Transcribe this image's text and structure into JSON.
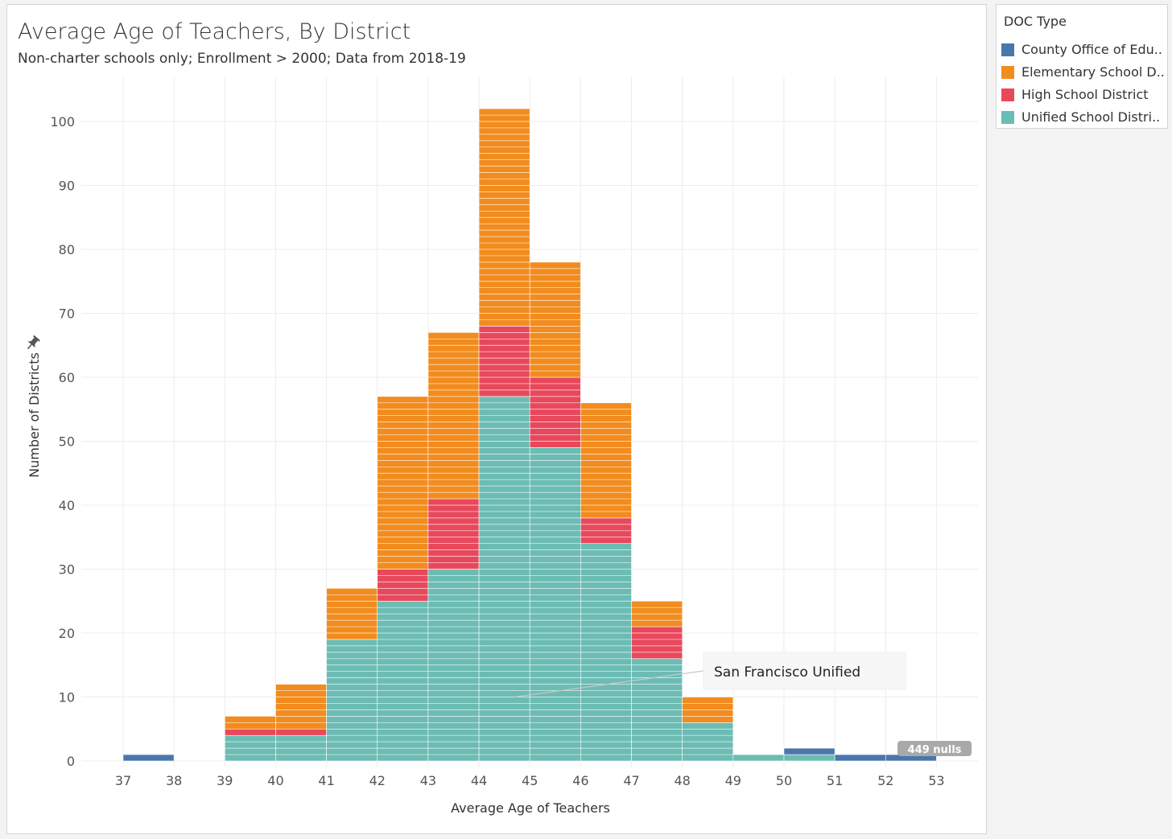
{
  "chart_data": {
    "type": "bar",
    "stacked": true,
    "histogram": true,
    "title": "Average Age of Teachers, By District",
    "subtitle": "Non-charter schools only; Enrollment > 2000; Data from 2018-19",
    "xlabel": "Average Age of Teachers",
    "ylabel": "Number of Districts",
    "xlim": [
      37,
      53
    ],
    "ylim": [
      0,
      105
    ],
    "x_ticks": [
      "37",
      "38",
      "39",
      "40",
      "41",
      "42",
      "43",
      "44",
      "45",
      "46",
      "47",
      "48",
      "49",
      "50",
      "51",
      "52",
      "53"
    ],
    "y_ticks": [
      "0",
      "10",
      "20",
      "30",
      "40",
      "50",
      "60",
      "70",
      "80",
      "90",
      "100"
    ],
    "bins": [
      {
        "start": 37,
        "end": 38
      },
      {
        "start": 38,
        "end": 39
      },
      {
        "start": 39,
        "end": 40
      },
      {
        "start": 40,
        "end": 41
      },
      {
        "start": 41,
        "end": 42
      },
      {
        "start": 42,
        "end": 43
      },
      {
        "start": 43,
        "end": 44
      },
      {
        "start": 44,
        "end": 45
      },
      {
        "start": 45,
        "end": 46
      },
      {
        "start": 46,
        "end": 47
      },
      {
        "start": 47,
        "end": 48
      },
      {
        "start": 48,
        "end": 49
      },
      {
        "start": 49,
        "end": 50
      },
      {
        "start": 50,
        "end": 51
      },
      {
        "start": 51,
        "end": 52
      },
      {
        "start": 52,
        "end": 53
      }
    ],
    "series": [
      {
        "name": "Unified School Distri..",
        "color": "#6cbcb4",
        "values": [
          0,
          0,
          4,
          4,
          19,
          25,
          30,
          57,
          49,
          34,
          16,
          6,
          1,
          1,
          0,
          0
        ]
      },
      {
        "name": "High School District",
        "color": "#e8485c",
        "values": [
          0,
          0,
          1,
          1,
          0,
          5,
          11,
          11,
          11,
          4,
          5,
          0,
          0,
          0,
          0,
          0
        ]
      },
      {
        "name": "Elementary School D..",
        "color": "#f28c1e",
        "values": [
          0,
          0,
          2,
          7,
          8,
          27,
          26,
          34,
          18,
          18,
          4,
          4,
          0,
          0,
          0,
          0
        ]
      },
      {
        "name": "County Office of Edu..",
        "color": "#4a76ab",
        "values": [
          1,
          0,
          0,
          0,
          0,
          0,
          0,
          0,
          0,
          0,
          0,
          0,
          0,
          1,
          1,
          1
        ]
      }
    ],
    "legend": {
      "title": "DOC Type",
      "position": "top-right",
      "order": [
        "County Office of Edu..",
        "Elementary School D..",
        "High School District",
        "Unified School Distri.."
      ]
    },
    "annotation": {
      "text": "San Francisco Unified",
      "x": 44.7,
      "y": 10
    },
    "nulls_badge": "449 nulls",
    "grid": true,
    "pin_icon": "pin-icon"
  }
}
